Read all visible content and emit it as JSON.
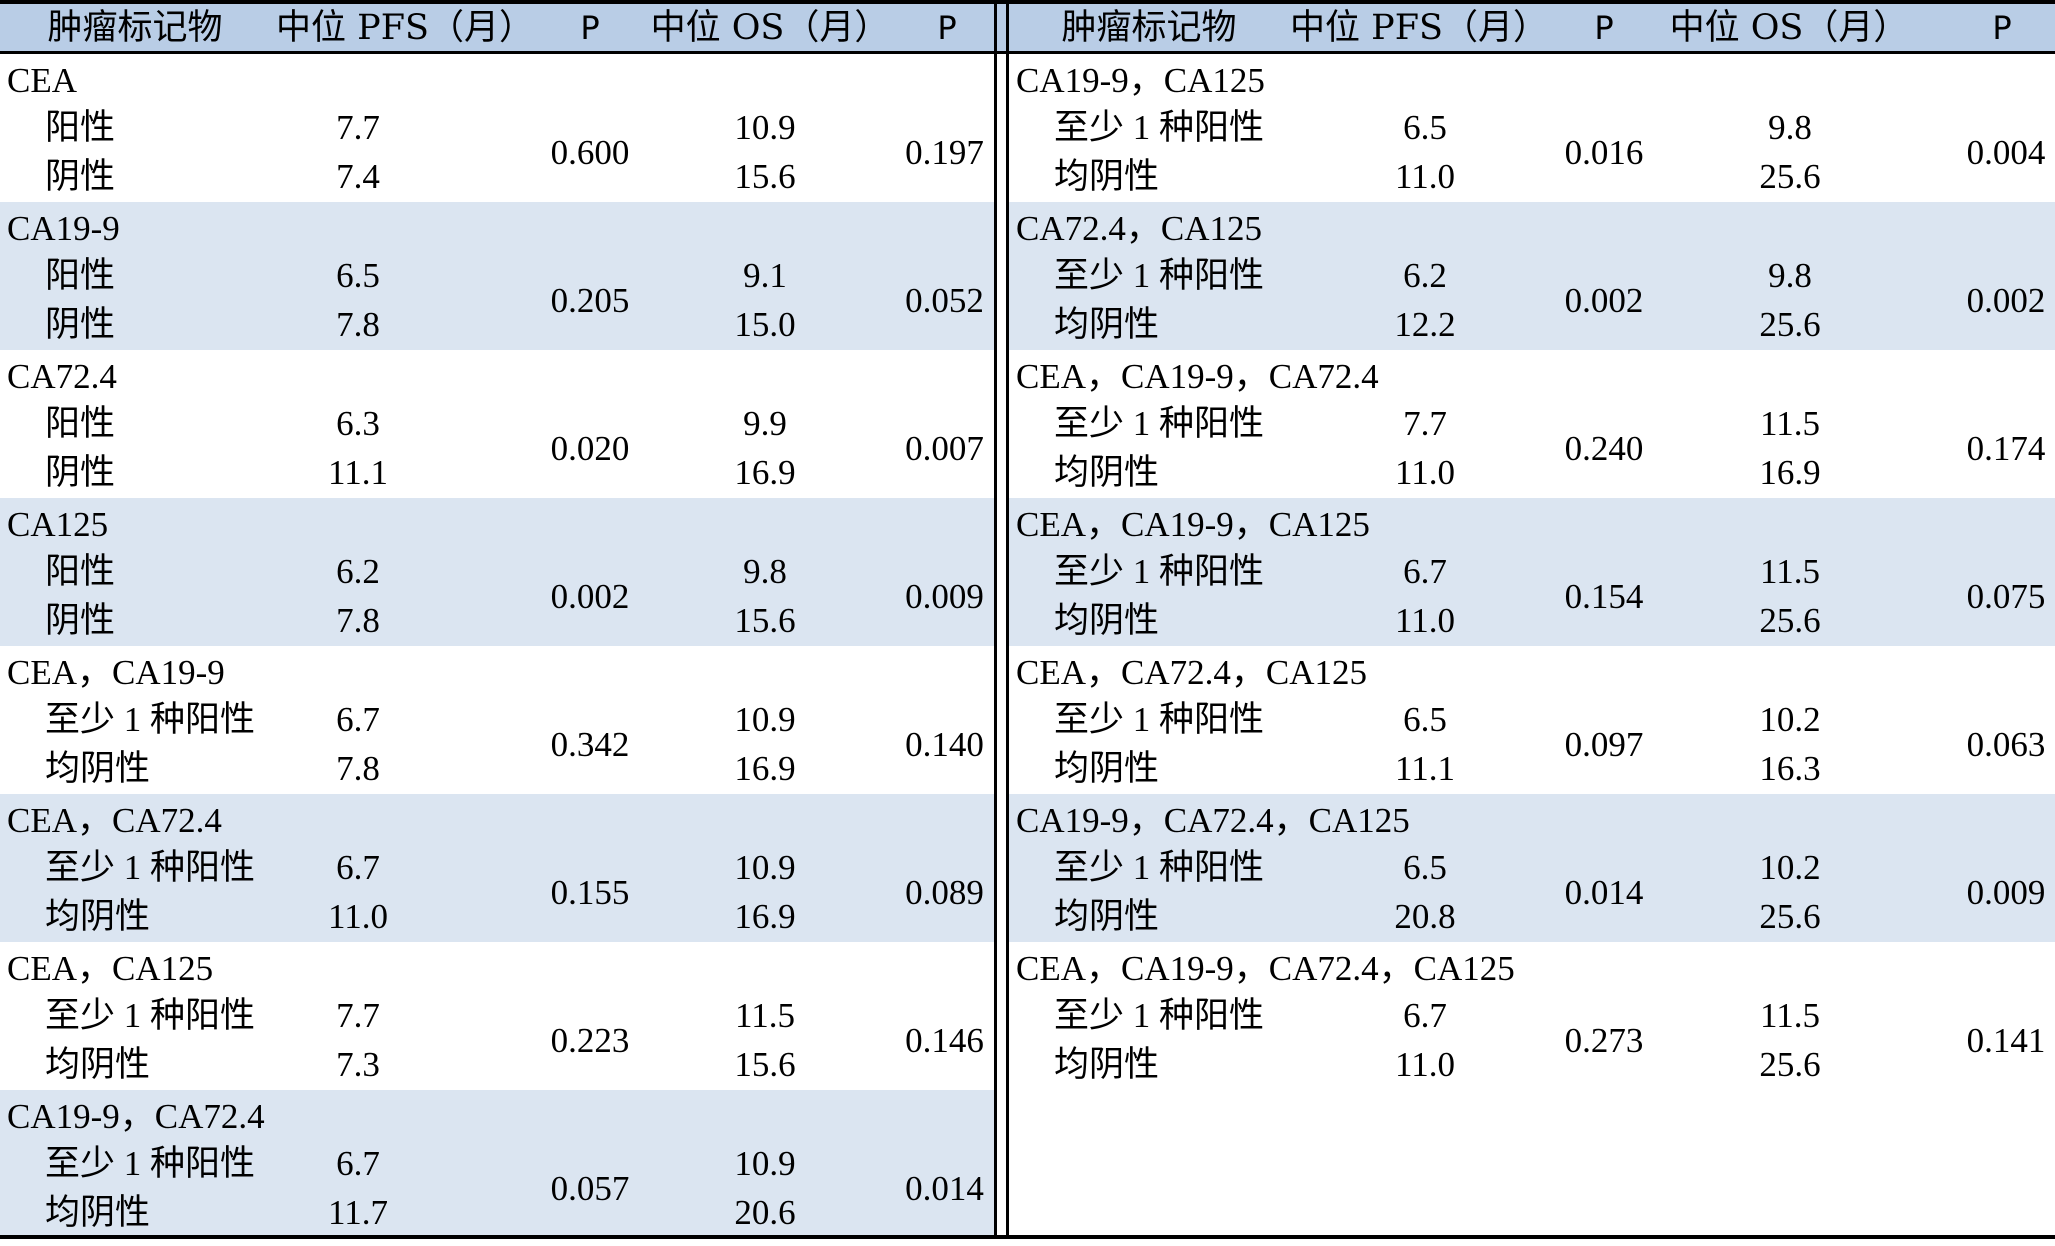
{
  "headers": {
    "marker": "肿瘤标记物",
    "pfs": "中位 PFS（月）",
    "p1": "P",
    "os": "中位 OS（月）",
    "p2": "P"
  },
  "left": [
    {
      "name": "CEA",
      "r1": "阳性",
      "r2": "阴性",
      "pfs1": "7.7",
      "pfs2": "7.4",
      "p_pfs": "0.600",
      "os1": "10.9",
      "os2": "15.6",
      "p_os": "0.197"
    },
    {
      "name": "CA19-9",
      "r1": "阳性",
      "r2": "阴性",
      "pfs1": "6.5",
      "pfs2": "7.8",
      "p_pfs": "0.205",
      "os1": "9.1",
      "os2": "15.0",
      "p_os": "0.052"
    },
    {
      "name": "CA72.4",
      "r1": "阳性",
      "r2": "阴性",
      "pfs1": "6.3",
      "pfs2": "11.1",
      "p_pfs": "0.020",
      "os1": "9.9",
      "os2": "16.9",
      "p_os": "0.007"
    },
    {
      "name": "CA125",
      "r1": "阳性",
      "r2": "阴性",
      "pfs1": "6.2",
      "pfs2": "7.8",
      "p_pfs": "0.002",
      "os1": "9.8",
      "os2": "15.6",
      "p_os": "0.009"
    },
    {
      "name": "CEA，CA19-9",
      "r1": "至少 1 种阳性",
      "r2": "均阴性",
      "pfs1": "6.7",
      "pfs2": "7.8",
      "p_pfs": "0.342",
      "os1": "10.9",
      "os2": "16.9",
      "p_os": "0.140"
    },
    {
      "name": "CEA，CA72.4",
      "r1": "至少 1 种阳性",
      "r2": "均阴性",
      "pfs1": "6.7",
      "pfs2": "11.0",
      "p_pfs": "0.155",
      "os1": "10.9",
      "os2": "16.9",
      "p_os": "0.089"
    },
    {
      "name": "CEA，CA125",
      "r1": "至少 1 种阳性",
      "r2": "均阴性",
      "pfs1": "7.7",
      "pfs2": "7.3",
      "p_pfs": "0.223",
      "os1": "11.5",
      "os2": "15.6",
      "p_os": "0.146"
    },
    {
      "name": "CA19-9，CA72.4",
      "r1": "至少 1 种阳性",
      "r2": "均阴性",
      "pfs1": "6.7",
      "pfs2": "11.7",
      "p_pfs": "0.057",
      "os1": "10.9",
      "os2": "20.6",
      "p_os": "0.014"
    }
  ],
  "right": [
    {
      "name": "CA19-9，CA125",
      "r1": "至少 1 种阳性",
      "r2": "均阴性",
      "pfs1": "6.5",
      "pfs2": "11.0",
      "p_pfs": "0.016",
      "os1": "9.8",
      "os2": "25.6",
      "p_os": "0.004"
    },
    {
      "name": "CA72.4，CA125",
      "r1": "至少 1 种阳性",
      "r2": "均阴性",
      "pfs1": "6.2",
      "pfs2": "12.2",
      "p_pfs": "0.002",
      "os1": "9.8",
      "os2": "25.6",
      "p_os": "0.002"
    },
    {
      "name": "CEA，CA19-9，CA72.4",
      "r1": "至少 1 种阳性",
      "r2": "均阴性",
      "pfs1": "7.7",
      "pfs2": "11.0",
      "p_pfs": "0.240",
      "os1": "11.5",
      "os2": "16.9",
      "p_os": "0.174"
    },
    {
      "name": "CEA，CA19-9，CA125",
      "r1": "至少 1 种阳性",
      "r2": "均阴性",
      "pfs1": "6.7",
      "pfs2": "11.0",
      "p_pfs": "0.154",
      "os1": "11.5",
      "os2": "25.6",
      "p_os": "0.075"
    },
    {
      "name": "CEA，CA72.4，CA125",
      "r1": "至少 1 种阳性",
      "r2": "均阴性",
      "pfs1": "6.5",
      "pfs2": "11.1",
      "p_pfs": "0.097",
      "os1": "10.2",
      "os2": "16.3",
      "p_os": "0.063"
    },
    {
      "name": "CA19-9，CA72.4，CA125",
      "r1": "至少 1 种阳性",
      "r2": "均阴性",
      "pfs1": "6.5",
      "pfs2": "20.8",
      "p_pfs": "0.014",
      "os1": "10.2",
      "os2": "25.6",
      "p_os": "0.009"
    },
    {
      "name": "CEA，CA19-9，CA72.4，CA125",
      "r1": "至少 1 种阳性",
      "r2": "均阴性",
      "pfs1": "6.7",
      "pfs2": "11.0",
      "p_pfs": "0.273",
      "os1": "11.5",
      "os2": "25.6",
      "p_os": "0.141"
    }
  ]
}
